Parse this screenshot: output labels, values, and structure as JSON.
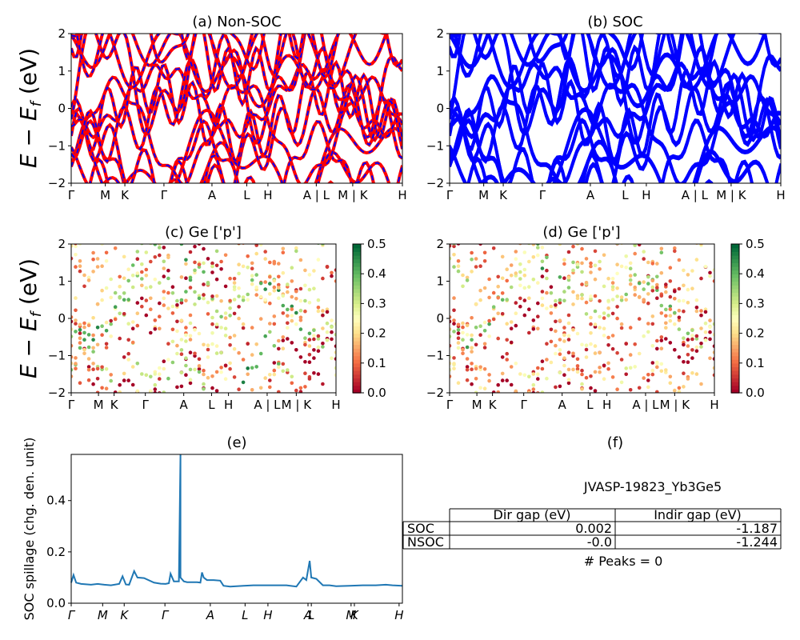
{
  "chart_data": [
    {
      "id": "a",
      "type": "line",
      "title": "(a) Non-SOC",
      "ylabel_main": "E − E",
      "ylabel_sub": "f",
      "ylabel_unit": " (eV)",
      "ylim": [
        -2,
        2
      ],
      "yticks": [
        "−2",
        "−1",
        "0",
        "1",
        "2"
      ],
      "kpath": [
        "Γ",
        "M",
        "K",
        "Γ",
        "A",
        "L",
        "H",
        "A | L",
        "M | K",
        "H"
      ],
      "series": [
        {
          "color": "#ff0000",
          "dash": "#0000ff"
        }
      ]
    },
    {
      "id": "b",
      "type": "line",
      "title": "(b) SOC",
      "ylim": [
        -2,
        2
      ],
      "yticks": [
        "−2",
        "−1",
        "0",
        "1",
        "2"
      ],
      "kpath": [
        "Γ",
        "M",
        "K",
        "Γ",
        "A",
        "L",
        "H",
        "A | L",
        "M | K",
        "H"
      ],
      "series": [
        {
          "color": "#0000ff"
        }
      ]
    },
    {
      "id": "c",
      "type": "scatter",
      "title": "(c)  Ge ['p']",
      "ylabel_main": "E − E",
      "ylabel_sub": "f",
      "ylabel_unit": " (eV)",
      "ylim": [
        -2,
        2
      ],
      "yticks": [
        "−2",
        "−1",
        "0",
        "1",
        "2"
      ],
      "kpath": [
        "Γ",
        "M",
        "K",
        "Γ",
        "A",
        "L",
        "H",
        "A | L",
        "M | K",
        "H"
      ],
      "colorbar": {
        "cmap": "RdYlGn",
        "range": [
          0.0,
          0.5
        ],
        "ticks": [
          "0.0",
          "0.1",
          "0.2",
          "0.3",
          "0.4",
          "0.5"
        ]
      }
    },
    {
      "id": "d",
      "type": "scatter",
      "title": "(d) Ge ['p']",
      "ylim": [
        -2,
        2
      ],
      "yticks": [
        "−2",
        "−1",
        "0",
        "1",
        "2"
      ],
      "kpath": [
        "Γ",
        "M",
        "K",
        "Γ",
        "A",
        "L",
        "H",
        "A | L",
        "M | K",
        "H"
      ],
      "colorbar": {
        "cmap": "RdYlGn",
        "range": [
          0.0,
          0.5
        ],
        "ticks": [
          "0.0",
          "0.1",
          "0.2",
          "0.3",
          "0.4",
          "0.5"
        ]
      }
    },
    {
      "id": "e",
      "type": "line",
      "title": "(e)",
      "ylabel": "SOC spillage (chg. den. unit)",
      "ylim": [
        0,
        0.58
      ],
      "yticks": [
        {
          "v": 0.0,
          "label": "0.0"
        },
        {
          "v": 0.2,
          "label": "0.2"
        },
        {
          "v": 0.4,
          "label": "0.4"
        }
      ],
      "xticks": [
        "Γ",
        "M",
        "K",
        "Γ",
        "A",
        "L",
        "H",
        "A",
        "L",
        "M",
        "K",
        "H"
      ],
      "color": "#1f77b4",
      "x": [
        0,
        0.007,
        0.015,
        0.03,
        0.06,
        0.08,
        0.1,
        0.12,
        0.145,
        0.155,
        0.165,
        0.175,
        0.19,
        0.2,
        0.22,
        0.25,
        0.27,
        0.285,
        0.295,
        0.3,
        0.31,
        0.325,
        0.33,
        0.33,
        0.34,
        0.35,
        0.38,
        0.39,
        0.395,
        0.4,
        0.41,
        0.43,
        0.45,
        0.46,
        0.48,
        0.52,
        0.55,
        0.6,
        0.65,
        0.68,
        0.7,
        0.71,
        0.72,
        0.725,
        0.74,
        0.76,
        0.78,
        0.8,
        0.84,
        0.88,
        0.92,
        0.95,
        0.97,
        1.0
      ],
      "y": [
        0.08,
        0.11,
        0.08,
        0.075,
        0.072,
        0.075,
        0.072,
        0.07,
        0.075,
        0.105,
        0.073,
        0.072,
        0.125,
        0.1,
        0.098,
        0.08,
        0.076,
        0.075,
        0.078,
        0.115,
        0.085,
        0.085,
        0.58,
        0.1,
        0.085,
        0.082,
        0.082,
        0.08,
        0.12,
        0.1,
        0.09,
        0.09,
        0.088,
        0.068,
        0.065,
        0.068,
        0.07,
        0.07,
        0.07,
        0.065,
        0.1,
        0.09,
        0.165,
        0.1,
        0.095,
        0.07,
        0.07,
        0.066,
        0.068,
        0.07,
        0.07,
        0.072,
        0.07,
        0.068
      ]
    }
  ],
  "table": {
    "title": "(f)",
    "subtitle": "JVASP-19823_Yb3Ge5",
    "headers": [
      "",
      "Dir gap (eV)",
      "Indir gap (eV)"
    ],
    "rows": [
      [
        "SOC",
        "0.002",
        "-1.187"
      ],
      [
        "NSOC",
        "-0.0",
        "-1.244"
      ]
    ],
    "footer": "# Peaks = 0"
  }
}
